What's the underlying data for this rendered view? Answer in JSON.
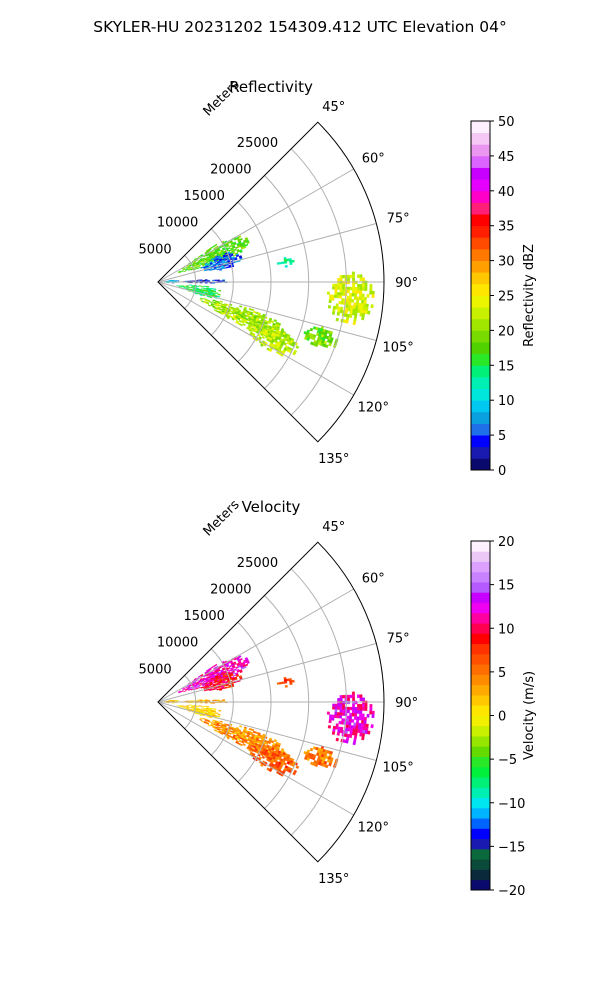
{
  "figure": {
    "suptitle": "SKYLER-HU  20231202  154309.412 UTC Elevation 04°"
  },
  "chart_data": [
    {
      "type": "heatmap",
      "subtype": "polar-sector-radar-ppi",
      "title": "Reflectivity",
      "radial_label": "Meters",
      "radial_ticks": [
        "5000",
        "10000",
        "15000",
        "20000",
        "25000"
      ],
      "radial_tick_values": [
        5000,
        10000,
        15000,
        20000,
        25000
      ],
      "r_max": 30000,
      "azimuth_range_deg": [
        45,
        135
      ],
      "azimuth_ticks": [
        "45°",
        "60°",
        "75°",
        "90°",
        "105°",
        "120°",
        "135°"
      ],
      "azimuth_tick_values": [
        45,
        60,
        75,
        90,
        105,
        120,
        135
      ],
      "grid": true,
      "colorbar": {
        "label": "Reflectivity dBZ",
        "range": [
          0,
          50
        ],
        "ticks": [
          "0",
          "5",
          "10",
          "15",
          "20",
          "25",
          "30",
          "35",
          "40",
          "45",
          "50"
        ],
        "tick_values": [
          0,
          5,
          10,
          15,
          20,
          25,
          30,
          35,
          40,
          45,
          50
        ],
        "colors": [
          "#0a0a6e",
          "#1a1ab0",
          "#0000ff",
          "#1e6fe8",
          "#0aa0e0",
          "#00c8f0",
          "#00e6dc",
          "#00f0b4",
          "#00f078",
          "#28e828",
          "#50d200",
          "#78dc00",
          "#a0e600",
          "#c8f000",
          "#ebf500",
          "#ffe600",
          "#ffc800",
          "#ffa000",
          "#ff7800",
          "#ff4b00",
          "#ff1e00",
          "#ff0000",
          "#ff1e78",
          "#ff00c8",
          "#e600ff",
          "#c800ff",
          "#dc64ff",
          "#eb96f0",
          "#f5c8f5",
          "#fff0ff"
        ]
      },
      "echo_regions": [
        {
          "az": [
            57,
            72
          ],
          "r": [
            3000,
            13000
          ],
          "value": 18
        },
        {
          "az": [
            66,
            79
          ],
          "r": [
            6000,
            11500
          ],
          "value": 6
        },
        {
          "az": [
            82,
            94
          ],
          "r": [
            500,
            2600
          ],
          "value": 9
        },
        {
          "az": [
            87,
            91
          ],
          "r": [
            2600,
            9000
          ],
          "value": 4
        },
        {
          "az": [
            94,
            107
          ],
          "r": [
            2500,
            8500
          ],
          "value": 15
        },
        {
          "az": [
            106,
            117
          ],
          "r": [
            6000,
            18000
          ],
          "value": 21
        },
        {
          "az": [
            111,
            121
          ],
          "r": [
            13000,
            20500
          ],
          "value": 22
        },
        {
          "az": [
            87,
            102
          ],
          "r": [
            22500,
            28500
          ],
          "value": 23
        },
        {
          "az": [
            105,
            112
          ],
          "r": [
            20500,
            25000
          ],
          "value": 19
        },
        {
          "az": [
            79,
            83
          ],
          "r": [
            16000,
            18000
          ],
          "value": 14
        }
      ]
    },
    {
      "type": "heatmap",
      "subtype": "polar-sector-radar-ppi",
      "title": "Velocity",
      "radial_label": "Meters",
      "radial_ticks": [
        "5000",
        "10000",
        "15000",
        "20000",
        "25000"
      ],
      "radial_tick_values": [
        5000,
        10000,
        15000,
        20000,
        25000
      ],
      "r_max": 30000,
      "azimuth_range_deg": [
        45,
        135
      ],
      "azimuth_ticks": [
        "45°",
        "60°",
        "75°",
        "90°",
        "105°",
        "120°",
        "135°"
      ],
      "azimuth_tick_values": [
        45,
        60,
        75,
        90,
        105,
        120,
        135
      ],
      "grid": true,
      "colorbar": {
        "label": "Velocity (m/s)",
        "range": [
          -20,
          20
        ],
        "ticks": [
          "−20",
          "−15",
          "−10",
          "−5",
          "0",
          "5",
          "10",
          "15",
          "20"
        ],
        "tick_values": [
          -20,
          -15,
          -10,
          -5,
          0,
          5,
          10,
          15,
          20
        ],
        "colors": [
          "#0a0a6e",
          "#0a2a3c",
          "#0a4a3a",
          "#0a6a3c",
          "#1a1ab0",
          "#0000ff",
          "#0064ff",
          "#00b4ff",
          "#00e6f0",
          "#00f0b4",
          "#00f078",
          "#00f03c",
          "#28e828",
          "#64dc00",
          "#96e600",
          "#c8f000",
          "#f0f000",
          "#ffe600",
          "#ffc800",
          "#ffaa00",
          "#ff8c00",
          "#ff6e00",
          "#ff5000",
          "#ff3200",
          "#ff0000",
          "#ff0050",
          "#ff00a0",
          "#f000f0",
          "#c800ff",
          "#b45aff",
          "#c882ff",
          "#dca0ff",
          "#ebc8f5",
          "#fff0ff"
        ]
      },
      "echo_regions": [
        {
          "az": [
            57,
            72
          ],
          "r": [
            3000,
            13000
          ],
          "value": 12
        },
        {
          "az": [
            66,
            79
          ],
          "r": [
            6000,
            11500
          ],
          "value": 9
        },
        {
          "az": [
            82,
            94
          ],
          "r": [
            500,
            2600
          ],
          "value": 2
        },
        {
          "az": [
            87,
            91
          ],
          "r": [
            2600,
            9000
          ],
          "value": 3
        },
        {
          "az": [
            94,
            107
          ],
          "r": [
            2500,
            8500
          ],
          "value": 1
        },
        {
          "az": [
            106,
            117
          ],
          "r": [
            6000,
            18000
          ],
          "value": 4
        },
        {
          "az": [
            111,
            121
          ],
          "r": [
            13000,
            20500
          ],
          "value": 6
        },
        {
          "az": [
            87,
            102
          ],
          "r": [
            22500,
            28500
          ],
          "value": 12
        },
        {
          "az": [
            105,
            112
          ],
          "r": [
            20500,
            25000
          ],
          "value": 5
        },
        {
          "az": [
            79,
            83
          ],
          "r": [
            16000,
            18000
          ],
          "value": 7
        }
      ]
    }
  ]
}
